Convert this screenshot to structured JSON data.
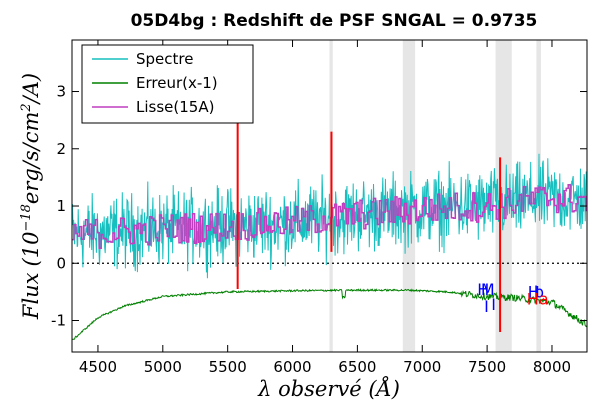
{
  "chart_data": {
    "type": "line",
    "title": "05D4bg : Redshift de PSF SNGAL = 0.9735",
    "xlabel": "λ observé (Å)",
    "ylabel": "Flux (10^-18 erg/s/cm²/A)",
    "ylabel_prefix": "Flux",
    "ylabel_paren_open": "(10",
    "ylabel_exp": "−18",
    "ylabel_units": "erg/s/cm",
    "ylabel_exp2": "2",
    "ylabel_tail": "/A)",
    "xlim": [
      4300,
      8270
    ],
    "ylim": [
      -1.55,
      3.9
    ],
    "x_ticks": [
      4500,
      5000,
      5500,
      6000,
      6500,
      7000,
      7500,
      8000
    ],
    "x_tick_labels": [
      "4500",
      "5000",
      "5500",
      "6000",
      "6500",
      "7000",
      "7500",
      "8000"
    ],
    "y_ticks": [
      -1,
      0,
      1,
      2,
      3
    ],
    "y_tick_labels": [
      "-1",
      "0",
      "1",
      "2",
      "3"
    ],
    "zero_line": true,
    "grid": false,
    "legend_position": "top-left",
    "series": [
      {
        "name": "Spectre",
        "color": "#17bfbf"
      },
      {
        "name": "Erreur(x-1)",
        "color": "#008000"
      },
      {
        "name": "Lisse(15A)",
        "color": "#bf3fbf"
      }
    ],
    "spectrum_trend": {
      "x": [
        4300,
        5000,
        5500,
        6000,
        6500,
        7000,
        7500,
        8000,
        8270
      ],
      "y": [
        0.5,
        0.6,
        0.65,
        0.72,
        0.85,
        0.95,
        1.0,
        1.15,
        1.1
      ]
    },
    "spectrum_noise_amplitude": 0.45,
    "error_curve": {
      "x": [
        4300,
        4500,
        4700,
        5000,
        5500,
        6000,
        6500,
        6900,
        7200,
        7500,
        7700,
        8000,
        8270
      ],
      "y": [
        -1.35,
        -0.95,
        -0.75,
        -0.58,
        -0.5,
        -0.48,
        -0.47,
        -0.47,
        -0.5,
        -0.58,
        -0.6,
        -0.68,
        -1.08
      ]
    },
    "smooth_trend_offset": 0.0,
    "shaded_bands": [
      {
        "x_start": 6285,
        "x_end": 6310,
        "color": "#e6e6e6"
      },
      {
        "x_start": 6850,
        "x_end": 6945,
        "color": "#e6e6e6"
      },
      {
        "x_start": 7565,
        "x_end": 7690,
        "color": "#e6e6e6"
      },
      {
        "x_start": 7880,
        "x_end": 7915,
        "color": "#e6e6e6"
      }
    ],
    "red_lines": [
      {
        "x": 5577,
        "y_start": -0.45,
        "y_end": 2.6,
        "color": "#ff0000"
      },
      {
        "x": 6300,
        "y_start": 0.2,
        "y_end": 2.3,
        "color": "#ff0000"
      },
      {
        "x": 7600,
        "y_start": -1.2,
        "y_end": 1.85,
        "color": "#ff0000"
      }
    ],
    "line_identifications": [
      {
        "label": "H",
        "x": 7470,
        "y": -0.55,
        "color": "#0000ff"
      },
      {
        "label": "I",
        "x": 7495,
        "y": -0.85,
        "color": "#0000ff"
      },
      {
        "label": "I",
        "x": 7550,
        "y": -0.82,
        "color": "#0000ff"
      },
      {
        "label": "M",
        "x": 7505,
        "y": -0.55,
        "color": "#0000ff"
      },
      {
        "label": "H",
        "x": 7860,
        "y": -0.6,
        "color": "#0000ff"
      },
      {
        "label": "b",
        "x": 7900,
        "y": -0.6,
        "color": "#0000ff"
      },
      {
        "label": "Ha",
        "x": 7890,
        "y": -0.72,
        "color": "#ff0000"
      }
    ]
  }
}
